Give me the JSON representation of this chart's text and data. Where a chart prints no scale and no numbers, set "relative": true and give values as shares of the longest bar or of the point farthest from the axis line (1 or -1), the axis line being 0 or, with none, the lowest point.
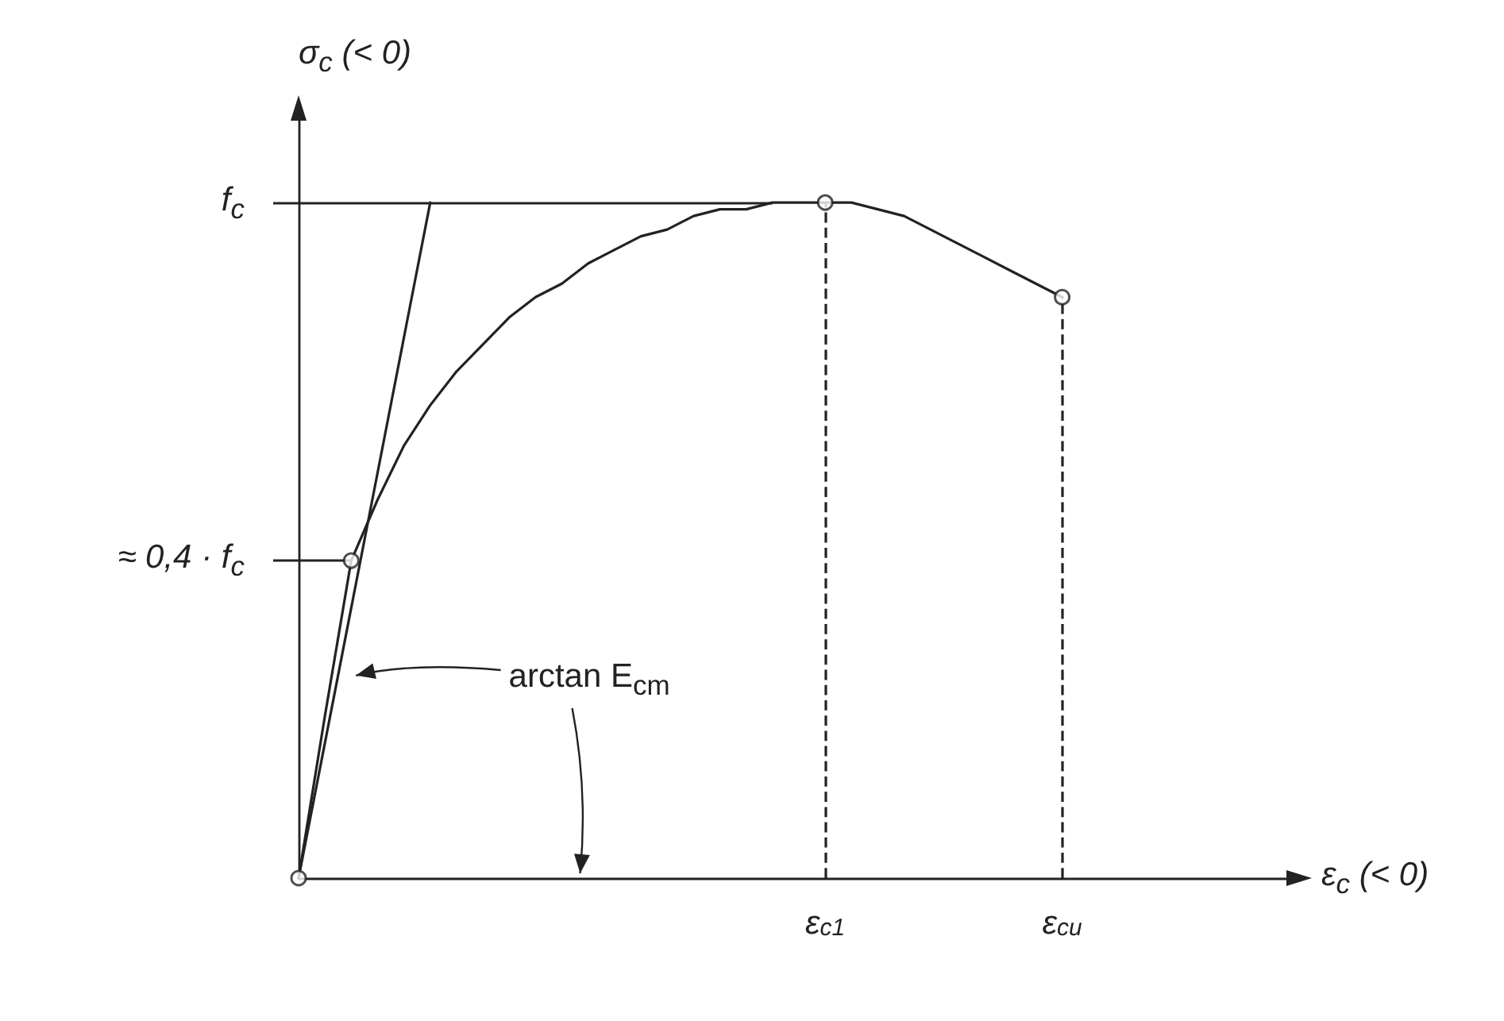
{
  "chart_data": {
    "type": "line",
    "relative": true,
    "xlabel": "ε$_{c}$ (< 0)",
    "ylabel": "σ$_{c}$ (< 0)",
    "categories": [
      null,
      null,
      null,
      null,
      null,
      null,
      null,
      null,
      null,
      null,
      null,
      null,
      null,
      null,
      null,
      null,
      null,
      null,
      null,
      null,
      "ε$_{c1}$",
      null,
      null,
      null,
      null,
      null,
      null,
      null,
      null,
      "ε$_{cu}$",
      null,
      null,
      null,
      null,
      null,
      null,
      null,
      null,
      null
    ],
    "grid": false,
    "marker": "none",
    "line_style": "solid",
    "series": [
      {
        "color": "#222222",
        "values": [
          0,
          0.24,
          0.47,
          0.56,
          0.64,
          0.7,
          0.75,
          0.79,
          0.83,
          0.86,
          0.88,
          0.91,
          0.93,
          0.95,
          0.96,
          0.98,
          0.99,
          0.99,
          1,
          1,
          1,
          1,
          0.99,
          0.98,
          0.96,
          0.94,
          0.92,
          0.9,
          0.88,
          0.86,
          null,
          null,
          null,
          null,
          null,
          null,
          null,
          null,
          null
        ]
      },
      {
        "color": "#222222",
        "values": [
          0,
          0.2,
          0.4,
          0.6,
          0.8,
          1,
          null,
          null,
          null,
          null,
          null,
          null,
          null,
          null,
          null,
          null,
          null,
          null,
          null,
          null,
          null,
          null,
          null,
          null,
          null,
          null,
          null,
          null,
          null,
          null,
          null,
          null,
          null,
          null,
          null,
          null,
          null,
          null,
          null
        ]
      },
      {
        "type": "scatter",
        "color": "#ffffff",
        "marker": "circle",
        "values": [
          0,
          null,
          0.47,
          null,
          null,
          null,
          null,
          null,
          null,
          null,
          null,
          null,
          null,
          null,
          null,
          null,
          null,
          null,
          null,
          null,
          1,
          null,
          null,
          null,
          null,
          null,
          null,
          null,
          null,
          0.86,
          null,
          null,
          null,
          null,
          null,
          null,
          null,
          null,
          null
        ]
      }
    ],
    "ref_lines": [
      {
        "axis": "y",
        "value": 1,
        "label": "f$_{c}$",
        "color": "#222222",
        "line_style": "solid"
      },
      {
        "axis": "y",
        "value": 0.47,
        "label": "≈ 0,4 · f$_{c}$",
        "color": "#222222",
        "line_style": "solid"
      },
      {
        "axis": "x",
        "value": "ε$_{c1}$",
        "color": "#222222",
        "line_style": "dashed"
      },
      {
        "axis": "x",
        "value": "ε$_{cu}$",
        "color": "#222222",
        "line_style": "dashed"
      }
    ],
    "annotations": [
      "arctan E$_{cm}$"
    ]
  }
}
